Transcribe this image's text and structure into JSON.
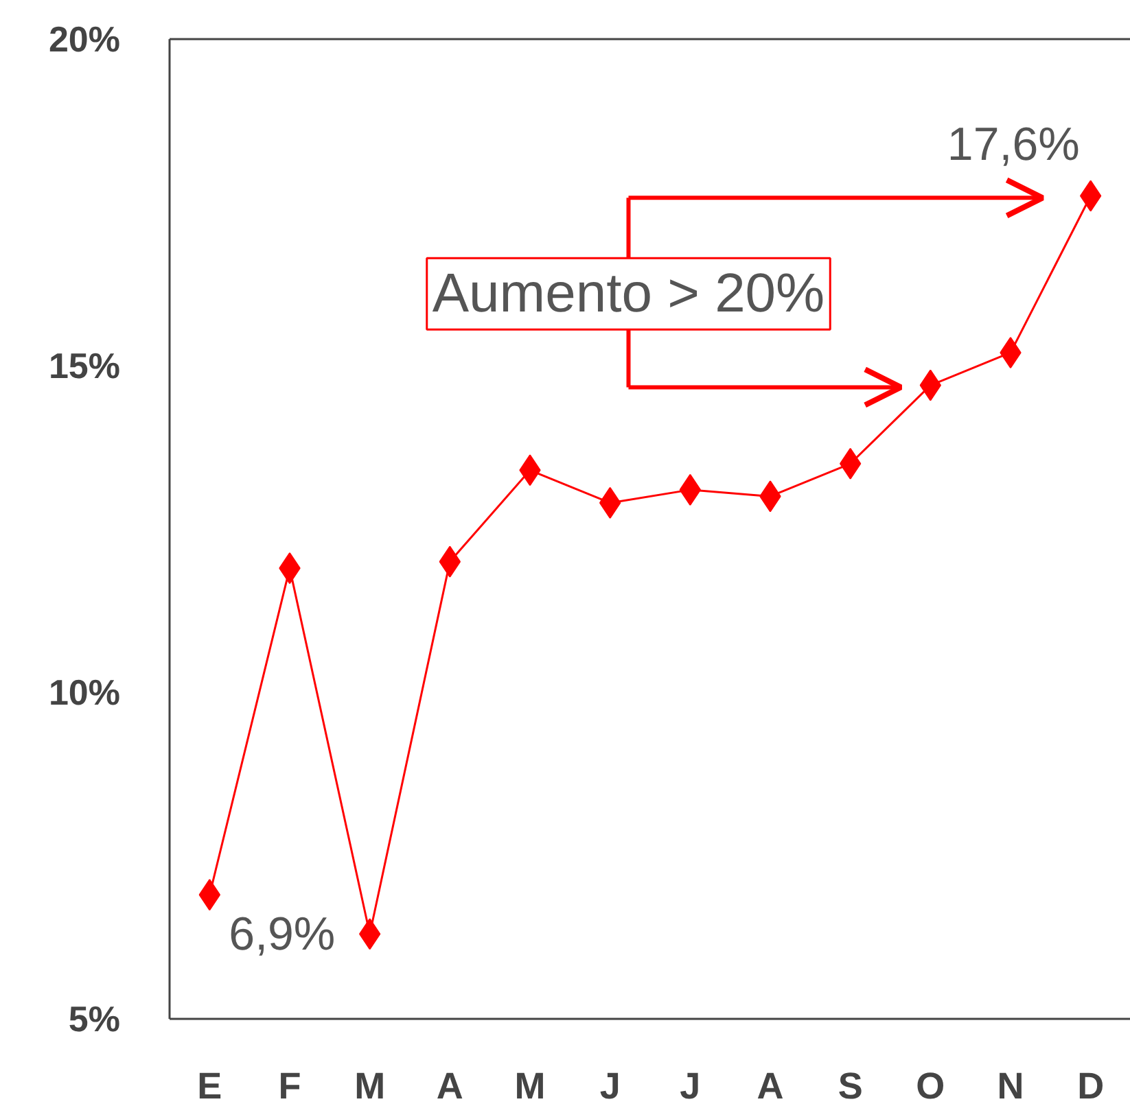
{
  "chart_data": {
    "type": "line",
    "categories": [
      "E",
      "F",
      "M",
      "A",
      "M",
      "J",
      "J",
      "A",
      "S",
      "O",
      "N",
      "D"
    ],
    "series": [
      {
        "color": "#ff0000",
        "values": [
          6.9,
          11.9,
          6.3,
          12.0,
          13.4,
          12.9,
          13.1,
          13.0,
          13.5,
          14.7,
          15.2,
          17.6
        ],
        "value_labels": [
          "6,9%",
          null,
          null,
          null,
          null,
          null,
          null,
          null,
          null,
          null,
          null,
          "17,6%"
        ]
      }
    ],
    "ylim": [
      5,
      20
    ],
    "yticks": [
      {
        "value": 5,
        "label": "5%"
      },
      {
        "value": 10,
        "label": "10%"
      },
      {
        "value": 15,
        "label": "15%"
      },
      {
        "value": 20,
        "label": "20%"
      }
    ],
    "marker": "diamond",
    "grid": false,
    "annotations": [
      "Aumento > 20%"
    ]
  }
}
